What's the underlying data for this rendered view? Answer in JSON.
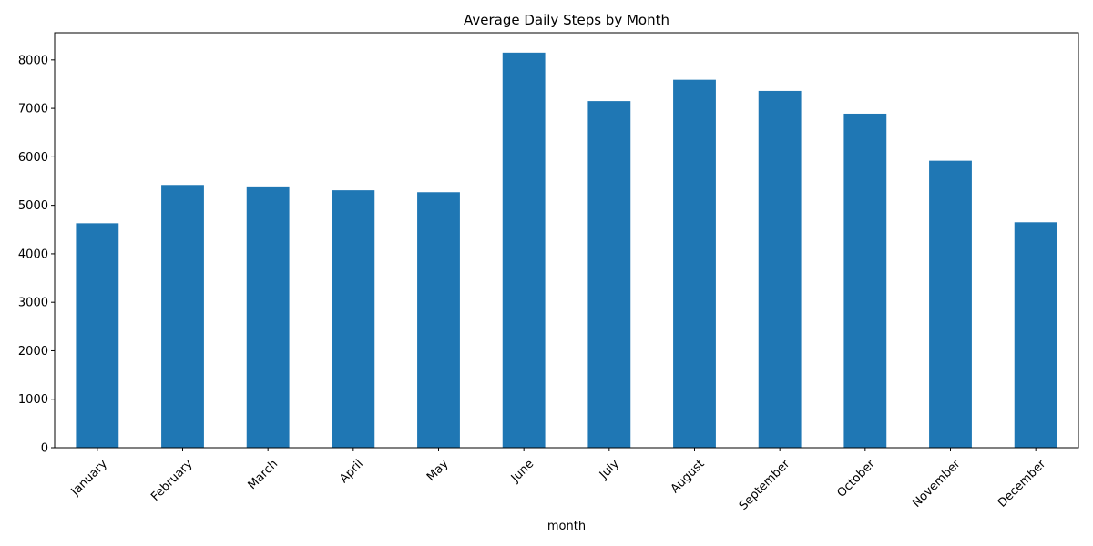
{
  "chart_data": {
    "type": "bar",
    "title": "Average Daily Steps by Month",
    "xlabel": "month",
    "ylabel": "",
    "categories": [
      "January",
      "February",
      "March",
      "April",
      "May",
      "June",
      "July",
      "August",
      "September",
      "October",
      "November",
      "December"
    ],
    "values": [
      4630,
      5420,
      5390,
      5310,
      5270,
      8150,
      7150,
      7590,
      7360,
      6890,
      5920,
      4650
    ],
    "ylim": [
      0,
      8560
    ],
    "yticks": [
      0,
      1000,
      2000,
      3000,
      4000,
      5000,
      6000,
      7000,
      8000
    ],
    "bar_color": "#1f77b4",
    "grid": false,
    "legend": "none"
  }
}
